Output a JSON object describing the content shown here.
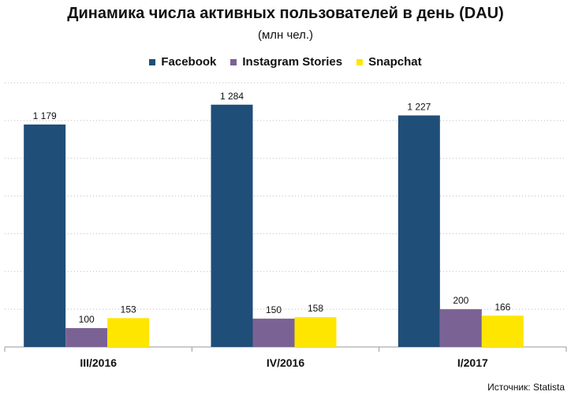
{
  "chart_data": {
    "type": "bar",
    "title": "Динамика числа активных пользователей в день (DAU)",
    "subtitle": "(млн чел.)",
    "categories": [
      "III/2016",
      "IV/2016",
      "I/2017"
    ],
    "series": [
      {
        "name": "Facebook",
        "color": "#1f4e79",
        "values": [
          1179,
          1284,
          1227
        ],
        "labels": [
          "1 179",
          "1 284",
          "1 227"
        ]
      },
      {
        "name": "Instagram Stories",
        "color": "#7a6394",
        "values": [
          100,
          150,
          200
        ],
        "labels": [
          "100",
          "150",
          "200"
        ]
      },
      {
        "name": "Snapchat",
        "color": "#ffe600",
        "values": [
          153,
          158,
          166
        ],
        "labels": [
          "153",
          "158",
          "166"
        ]
      }
    ],
    "ylim": [
      0,
      1400
    ],
    "grid": true,
    "legend_position": "top-center"
  },
  "source": "Источник: Statista"
}
